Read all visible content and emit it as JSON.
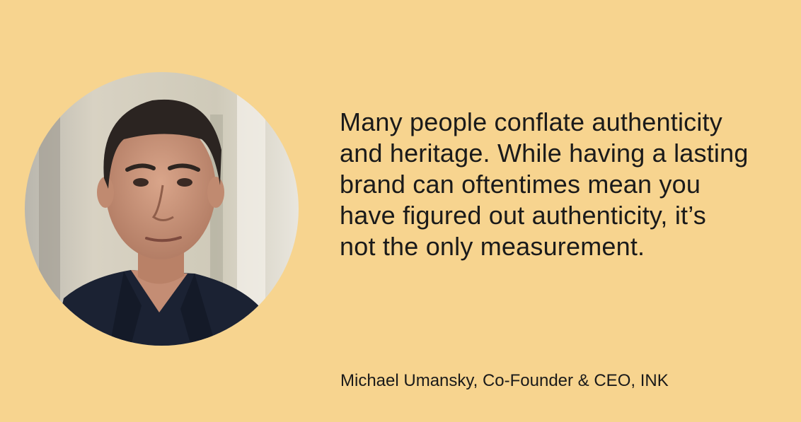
{
  "colors": {
    "background": "#f7d48f",
    "text": "#1a1a1a"
  },
  "portrait": {
    "icon": "person-portrait-photo"
  },
  "quote": {
    "lines": [
      "Many people conflate authenticity",
      "and heritage. While having a lasting",
      "brand can oftentimes mean you",
      "have figured out authenticity, it’s",
      "not the only measurement."
    ]
  },
  "attribution": "Michael Umansky, Co-Founder & CEO, INK"
}
